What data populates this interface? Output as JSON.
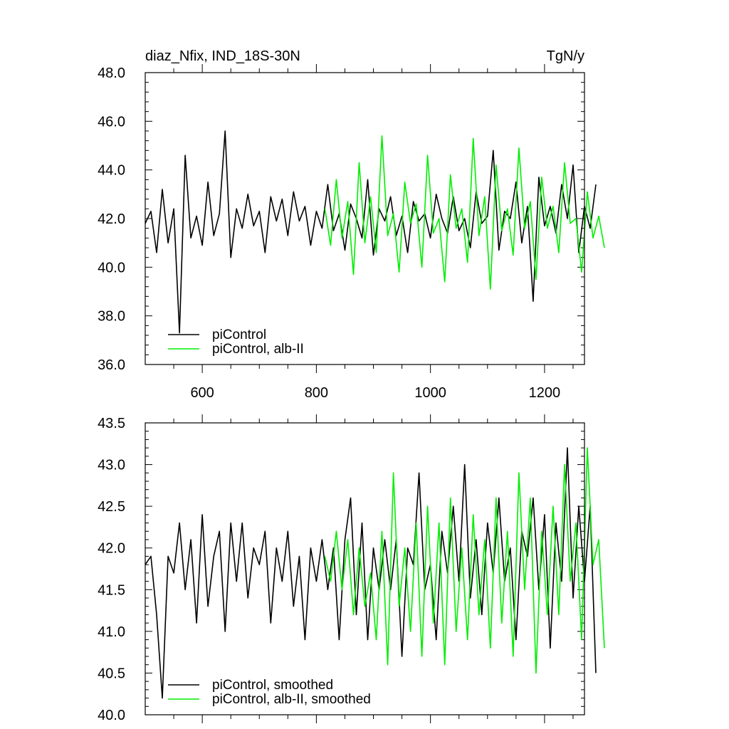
{
  "chart_data": [
    {
      "type": "line",
      "title": "diaz_Nfix, IND_18S-30N",
      "units": "TgN/y",
      "xlabel": "",
      "ylabel": "",
      "xlim": [
        500,
        1270
      ],
      "ylim": [
        36.0,
        48.0
      ],
      "xticks": [
        600,
        800,
        1000,
        1200
      ],
      "xtick_labels": [
        "600",
        "800",
        "1000",
        "1200"
      ],
      "yticks": [
        36.0,
        38.0,
        40.0,
        42.0,
        44.0,
        46.0,
        48.0
      ],
      "ytick_labels": [
        "36.0",
        "38.0",
        "40.0",
        "42.0",
        "44.0",
        "46.0",
        "48.0"
      ],
      "grid": false,
      "legend_position": "bottom-left",
      "series": [
        {
          "name": "piControl",
          "color": "#000000",
          "x_start": 500,
          "x_step": 10,
          "values": [
            41.8,
            42.3,
            40.6,
            43.2,
            41.0,
            42.4,
            37.3,
            44.6,
            41.2,
            42.1,
            40.9,
            43.5,
            41.3,
            42.2,
            45.6,
            40.4,
            42.4,
            41.6,
            43.0,
            41.7,
            42.3,
            40.6,
            42.9,
            41.9,
            42.8,
            41.3,
            43.1,
            41.9,
            42.5,
            40.9,
            42.3,
            41.6,
            43.4,
            41.5,
            42.2,
            40.7,
            42.6,
            42.0,
            41.2,
            43.6,
            40.5,
            42.4,
            41.9,
            42.9,
            41.3,
            42.1,
            40.6,
            42.7,
            41.9,
            42.2,
            41.2,
            43.0,
            42.0,
            41.4,
            42.9,
            41.5,
            42.0,
            40.8,
            43.1,
            41.8,
            42.1,
            44.8,
            40.7,
            42.3,
            42.0,
            43.5,
            41.0,
            42.5,
            38.6,
            43.7,
            41.7,
            42.5,
            41.4,
            43.4,
            42.0,
            44.2,
            40.6,
            42.5,
            41.6,
            43.4
          ],
          "values_note_skip": true
        },
        {
          "name": "piControl, alb-II",
          "color": "#00ee00",
          "x_start": 815,
          "x_step": 10,
          "values": [
            42.4,
            40.9,
            43.6,
            41.2,
            42.7,
            39.7,
            44.3,
            41.0,
            42.9,
            40.6,
            45.4,
            41.3,
            42.2,
            39.8,
            43.5,
            41.8,
            42.6,
            40.0,
            44.6,
            41.4,
            42.0,
            39.4,
            43.8,
            41.6,
            42.4,
            40.2,
            45.3,
            41.3,
            42.9,
            39.1,
            44.2,
            41.5,
            42.4,
            40.5,
            44.9,
            41.6,
            42.7,
            39.5,
            43.7,
            41.6,
            42.5,
            40.6,
            44.3,
            41.8,
            42.0,
            39.8,
            43.1,
            41.2,
            42.1,
            40.8
          ]
        }
      ]
    },
    {
      "type": "line",
      "title": "",
      "xlabel": "",
      "ylabel": "",
      "xlim": [
        500,
        1270
      ],
      "ylim": [
        40.0,
        43.5
      ],
      "xticks": [
        600,
        800,
        1000,
        1200
      ],
      "yticks": [
        40.0,
        40.5,
        41.0,
        41.5,
        42.0,
        42.5,
        43.0,
        43.5
      ],
      "ytick_labels": [
        "40.0",
        "40.5",
        "41.0",
        "41.5",
        "42.0",
        "42.5",
        "43.0",
        "43.5"
      ],
      "grid": false,
      "legend_position": "bottom-left",
      "series": [
        {
          "name": "piControl, smoothed",
          "color": "#000000",
          "x_start": 500,
          "x_step": 10,
          "values": [
            41.8,
            41.9,
            41.2,
            40.2,
            41.9,
            41.7,
            42.3,
            41.5,
            42.1,
            41.1,
            42.4,
            41.3,
            41.9,
            42.2,
            41.0,
            42.3,
            41.6,
            42.3,
            41.4,
            42.0,
            41.8,
            42.2,
            41.1,
            42.0,
            41.6,
            42.2,
            41.3,
            41.9,
            40.9,
            42.0,
            41.6,
            42.1,
            41.5,
            42.0,
            40.9,
            42.1,
            42.6,
            41.2,
            42.3,
            40.9,
            42.0,
            41.5,
            42.1,
            41.5,
            42.1,
            40.7,
            42.0,
            41.8,
            42.9,
            41.5,
            41.8,
            40.9,
            42.2,
            41.7,
            42.5,
            41.6,
            43.0,
            41.4,
            42.1,
            41.2,
            42.3,
            41.7,
            42.6,
            41.6,
            42.0,
            40.9,
            42.2,
            41.9,
            42.6,
            41.5,
            42.4,
            40.8,
            42.3,
            41.6,
            43.2,
            41.4,
            42.5,
            41.6,
            42.5,
            40.5
          ]
        },
        {
          "name": "piControl, alb-II, smoothed",
          "color": "#00ee00",
          "x_start": 815,
          "x_step": 10,
          "values": [
            41.9,
            41.6,
            42.2,
            41.5,
            42.1,
            41.2,
            42.0,
            41.3,
            41.7,
            40.9,
            42.2,
            40.6,
            42.9,
            41.3,
            42.0,
            41.0,
            42.3,
            40.7,
            42.5,
            41.1,
            42.3,
            40.6,
            42.6,
            41.0,
            42.0,
            40.9,
            42.4,
            41.2,
            42.1,
            40.8,
            42.6,
            41.1,
            42.2,
            40.7,
            42.9,
            41.5,
            42.6,
            40.5,
            42.2,
            41.2,
            42.5,
            41.2,
            43.0,
            41.6,
            42.3,
            40.9,
            43.2,
            41.8,
            42.1,
            40.8
          ]
        }
      ]
    }
  ]
}
